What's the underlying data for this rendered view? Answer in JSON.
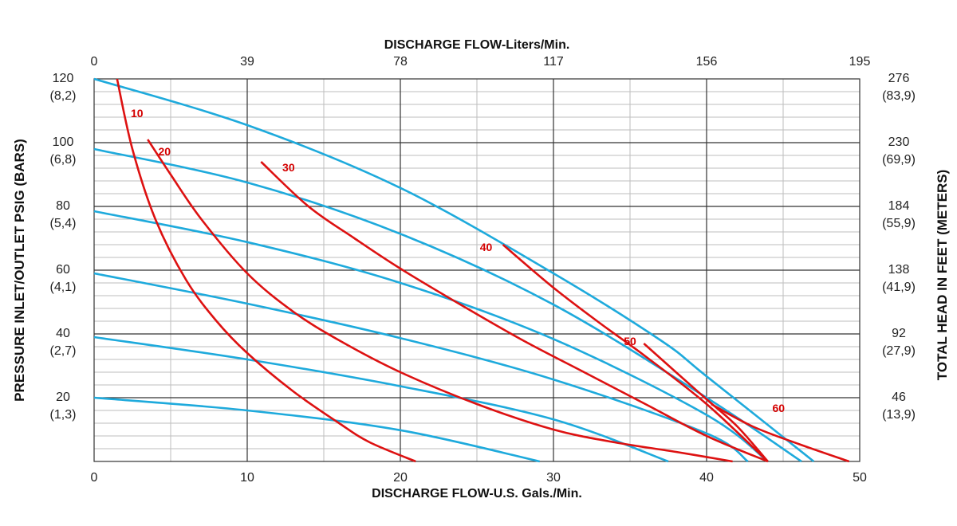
{
  "chart_data": {
    "type": "line",
    "title": "",
    "top_axis_title": "DISCHARGE FLOW-Liters/Min.",
    "bottom_axis_title": "DISCHARGE FLOW-U.S. Gals./Min.",
    "left_axis_title": "PRESSURE INLET/OUTLET PSIG (BARS)",
    "right_axis_title": "TOTAL HEAD IN FEET (METERS)",
    "xlim": [
      0,
      50
    ],
    "ylim": [
      0,
      120
    ],
    "grid": true,
    "x_ticks": [
      "0",
      "10",
      "20",
      "30",
      "40",
      "50"
    ],
    "top_ticks": [
      "0",
      "39",
      "78",
      "117",
      "156",
      "195"
    ],
    "left_ticks": [
      {
        "psi": "120",
        "bar": "(8,2)"
      },
      {
        "psi": "100",
        "bar": "(6,8)"
      },
      {
        "psi": "80",
        "bar": "(5,4)"
      },
      {
        "psi": "60",
        "bar": "(4,1)"
      },
      {
        "psi": "40",
        "bar": "(2,7)"
      },
      {
        "psi": "20",
        "bar": "(1,3)"
      }
    ],
    "right_ticks": [
      {
        "ft": "276",
        "m": "(83,9)"
      },
      {
        "ft": "230",
        "m": "(69,9)"
      },
      {
        "ft": "184",
        "m": "(55,9)"
      },
      {
        "ft": "138",
        "m": "(41,9)"
      },
      {
        "ft": "92",
        "m": "(27,9)"
      },
      {
        "ft": "46",
        "m": "(13,9)"
      }
    ],
    "colors": {
      "pressure_curves": "#1eaadc",
      "air_curves": "#dd1111",
      "grid": "#333333",
      "minor_grid": "#bdbdbd"
    },
    "pressure_curves": [
      {
        "x": [
          0,
          10,
          20,
          30,
          37,
          40,
          47
        ],
        "y": [
          120,
          105.5,
          85.8,
          59,
          38,
          26.7,
          0
        ]
      },
      {
        "x": [
          0,
          10,
          20,
          30,
          40,
          46.2
        ],
        "y": [
          98,
          87.5,
          71.4,
          49.2,
          20,
          0
        ]
      },
      {
        "x": [
          0,
          10,
          20,
          30,
          40,
          44
        ],
        "y": [
          78.5,
          68.8,
          56,
          38.4,
          14.6,
          0
        ]
      },
      {
        "x": [
          0,
          10,
          20,
          30,
          40,
          42.7
        ],
        "y": [
          59,
          49.5,
          38.7,
          25.7,
          8.8,
          0
        ]
      },
      {
        "x": [
          0,
          10,
          20,
          30,
          37.5
        ],
        "y": [
          39,
          32,
          23.6,
          13.2,
          0
        ]
      },
      {
        "x": [
          0,
          10,
          20,
          29.1
        ],
        "y": [
          20,
          16,
          9.8,
          0
        ]
      }
    ],
    "air_curves": [
      {
        "label": "10",
        "label_pos": [
          2.8,
          108
        ],
        "x": [
          1.5,
          2.5,
          4,
          6,
          8,
          10,
          13,
          16,
          18,
          21
        ],
        "y": [
          120,
          98,
          76,
          57,
          44,
          34,
          22,
          12,
          6,
          0
        ]
      },
      {
        "label": "20",
        "label_pos": [
          4.6,
          96
        ],
        "x": [
          3.5,
          5,
          7,
          10,
          13,
          16,
          20,
          25,
          30,
          34,
          38,
          41.7
        ],
        "y": [
          101,
          90,
          76,
          59,
          47,
          38,
          28,
          18,
          10,
          6,
          3,
          0
        ]
      },
      {
        "label": "30",
        "label_pos": [
          12.7,
          91
        ],
        "x": [
          10.9,
          14,
          17,
          20,
          24,
          28,
          32,
          36,
          40,
          44
        ],
        "y": [
          94,
          80,
          70,
          60.5,
          49,
          38,
          28,
          18,
          8,
          0
        ]
      },
      {
        "label": "40",
        "label_pos": [
          25.6,
          66
        ],
        "x": [
          26.7,
          30,
          33,
          36,
          40,
          44
        ],
        "y": [
          68,
          54.5,
          43.5,
          33,
          18,
          0
        ]
      },
      {
        "label": "50",
        "label_pos": [
          35,
          36.5
        ],
        "x": [
          35.9,
          38,
          40,
          42,
          44
        ],
        "y": [
          37,
          28,
          19.5,
          11,
          0
        ]
      },
      {
        "label": "60",
        "label_pos": [
          44.7,
          15.5
        ],
        "x": [
          40.3,
          43,
          46,
          49.3
        ],
        "y": [
          18,
          11,
          5.5,
          0
        ]
      }
    ]
  }
}
